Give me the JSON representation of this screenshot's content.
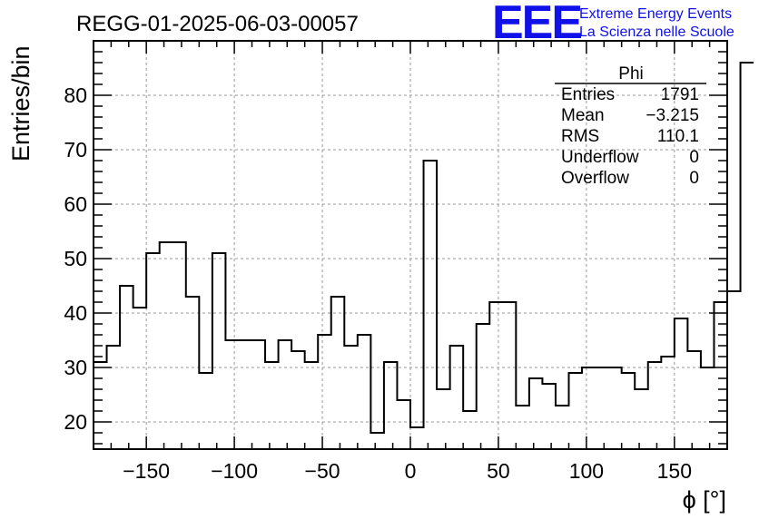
{
  "logo": {
    "mark": "EEE",
    "line1": "Extreme Energy Events",
    "line2": "La Scienza nelle Scuole"
  },
  "stats": {
    "name": "Phi",
    "rows": [
      {
        "label": "Entries",
        "value": "1791"
      },
      {
        "label": "Mean",
        "value": "−3.215"
      },
      {
        "label": "RMS",
        "value": "110.1"
      },
      {
        "label": "Underflow",
        "value": "0"
      },
      {
        "label": "Overflow",
        "value": "0"
      }
    ]
  },
  "colors": {
    "line": "#000000",
    "grid": "#999999",
    "logo": "#1010e8"
  },
  "chart_data": {
    "type": "bar",
    "style": "step-histogram",
    "title": "REGG-01-2025-06-03-00057",
    "xlabel": "ϕ [°]",
    "ylabel": "Entries/bin",
    "xlim": [
      -180,
      180
    ],
    "ylim": [
      15,
      90
    ],
    "grid": true,
    "xticks": [
      -150,
      -100,
      -50,
      0,
      50,
      100,
      150
    ],
    "xtick_labels": [
      "−150",
      "−100",
      "−50",
      "0",
      "50",
      "100",
      "150"
    ],
    "yticks": [
      20,
      30,
      40,
      50,
      60,
      70,
      80
    ],
    "yminor_step": 2,
    "xminor_step": 10,
    "bin_width": 7.5,
    "bin_edges_start": -180,
    "values": [
      31,
      34,
      45,
      41,
      51,
      53,
      53,
      43,
      29,
      51,
      35,
      35,
      35,
      31,
      35,
      33,
      31,
      36,
      43,
      34,
      36,
      18,
      31,
      24,
      19,
      68,
      26,
      34,
      22,
      38,
      42,
      42,
      23,
      28,
      27,
      23,
      29,
      30,
      30,
      30,
      29,
      26,
      31,
      32,
      39,
      33,
      30,
      42,
      44,
      86
    ]
  }
}
